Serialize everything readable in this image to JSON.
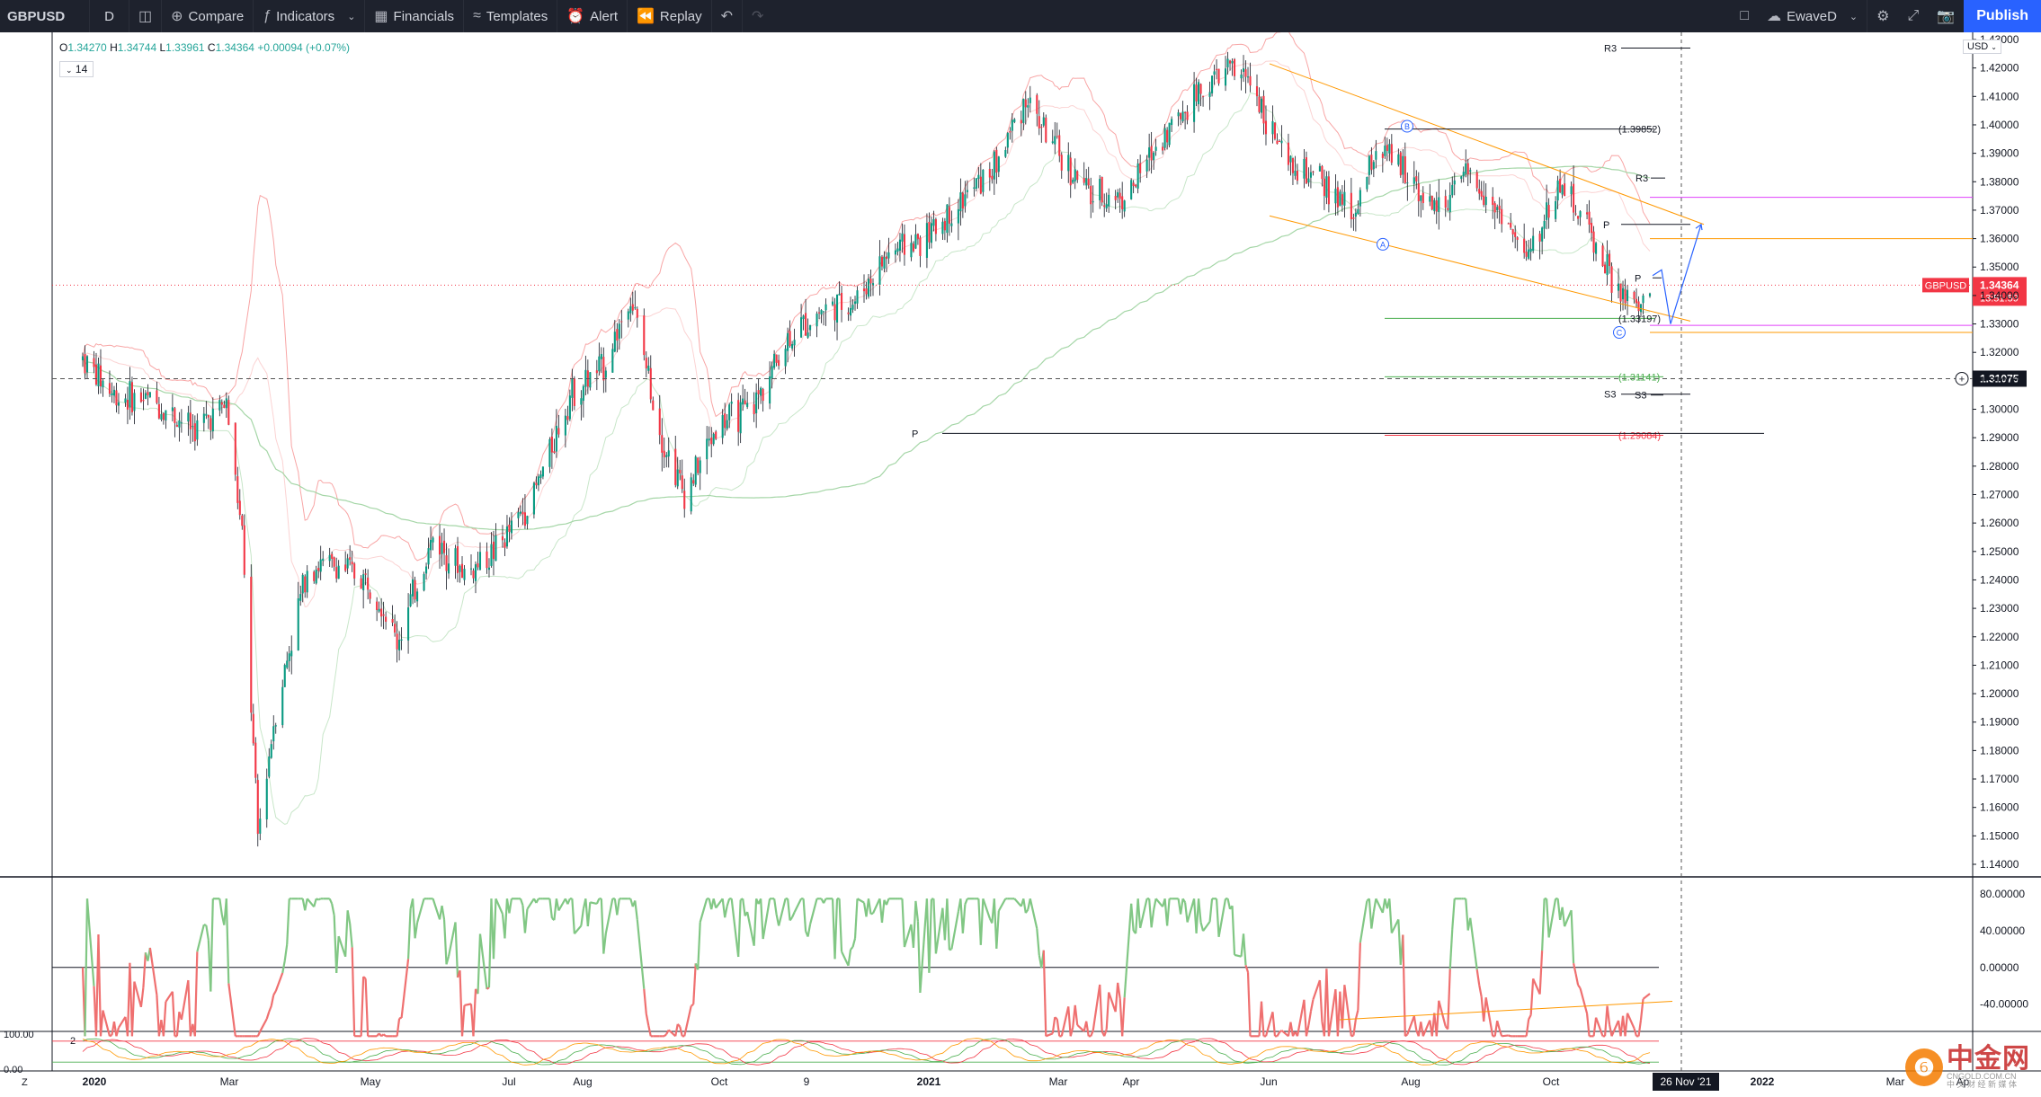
{
  "toolbar": {
    "symbol": "GBPUSD",
    "interval": "D",
    "compare": "Compare",
    "indicators": "Indicators",
    "financials": "Financials",
    "templates": "Templates",
    "alert": "Alert",
    "replay": "Replay",
    "layout_name": "EwaveD",
    "publish": "Publish"
  },
  "legend": {
    "o_label": "O",
    "o": "1.34270",
    "h_label": "H",
    "h": "1.34744",
    "l_label": "L",
    "l": "1.33961",
    "c_label": "C",
    "c": "1.34364",
    "change": "+0.00094 (+0.07%)",
    "period": "14"
  },
  "currency": "USD",
  "price_tag": {
    "symbol": "GBPUSD",
    "price": "1.34364",
    "countdown": "13:51:59",
    "color": "#f23645"
  },
  "crosshair_price": "1.31075",
  "crosshair_date": "26 Nov '21",
  "colors": {
    "up": "#089981",
    "down": "#f23645",
    "accent": "#2962ff",
    "band": "#f8a5a5",
    "ma": "#a5d6a7"
  },
  "chart_data": {
    "type": "candlestick",
    "price_axis": [
      "1.43000",
      "1.42000",
      "1.41000",
      "1.40000",
      "1.39000",
      "1.38000",
      "1.37000",
      "1.36000",
      "1.35000",
      "1.34000",
      "1.33000",
      "1.32000",
      "1.31000",
      "1.30000",
      "1.29000",
      "1.28000",
      "1.27000",
      "1.26000",
      "1.25000",
      "1.24000",
      "1.23000",
      "1.22000",
      "1.21000",
      "1.20000",
      "1.19000",
      "1.18000",
      "1.17000",
      "1.16000",
      "1.15000",
      "1.14000"
    ],
    "ylim": [
      1.1375,
      1.4315
    ],
    "time_axis": [
      "2020",
      "Mar",
      "May",
      "Jul",
      "Aug",
      "Oct",
      "9",
      "2021",
      "Mar",
      "Apr",
      "Jun",
      "Aug",
      "Oct",
      "26 Nov '21",
      "2022",
      "Mar",
      "Ap"
    ],
    "series_close": [
      [
        "2020-01-01",
        1.318
      ],
      [
        "2020-01-15",
        1.305
      ],
      [
        "2020-02-01",
        1.303
      ],
      [
        "2020-02-20",
        1.293
      ],
      [
        "2020-03-05",
        1.302
      ],
      [
        "2020-03-12",
        1.255
      ],
      [
        "2020-03-19",
        1.15
      ],
      [
        "2020-03-26",
        1.19
      ],
      [
        "2020-04-10",
        1.245
      ],
      [
        "2020-04-25",
        1.245
      ],
      [
        "2020-05-10",
        1.238
      ],
      [
        "2020-05-20",
        1.218
      ],
      [
        "2020-06-05",
        1.255
      ],
      [
        "2020-06-20",
        1.242
      ],
      [
        "2020-07-05",
        1.252
      ],
      [
        "2020-07-20",
        1.27
      ],
      [
        "2020-08-05",
        1.305
      ],
      [
        "2020-08-20",
        1.315
      ],
      [
        "2020-09-01",
        1.34
      ],
      [
        "2020-09-15",
        1.29
      ],
      [
        "2020-09-25",
        1.27
      ],
      [
        "2020-10-10",
        1.295
      ],
      [
        "2020-10-25",
        1.3
      ],
      [
        "2020-11-10",
        1.325
      ],
      [
        "2020-11-25",
        1.335
      ],
      [
        "2020-12-10",
        1.338
      ],
      [
        "2020-12-25",
        1.355
      ],
      [
        "2021-01-10",
        1.36
      ],
      [
        "2021-01-25",
        1.372
      ],
      [
        "2021-02-10",
        1.385
      ],
      [
        "2021-02-24",
        1.41
      ],
      [
        "2021-03-10",
        1.39
      ],
      [
        "2021-03-25",
        1.375
      ],
      [
        "2021-04-10",
        1.375
      ],
      [
        "2021-04-25",
        1.395
      ],
      [
        "2021-05-10",
        1.41
      ],
      [
        "2021-05-25",
        1.42
      ],
      [
        "2021-06-05",
        1.415
      ],
      [
        "2021-06-20",
        1.385
      ],
      [
        "2021-07-05",
        1.38
      ],
      [
        "2021-07-20",
        1.368
      ],
      [
        "2021-07-30",
        1.392
      ],
      [
        "2021-08-15",
        1.382
      ],
      [
        "2021-08-25",
        1.37
      ],
      [
        "2021-09-10",
        1.382
      ],
      [
        "2021-09-25",
        1.368
      ],
      [
        "2021-10-05",
        1.352
      ],
      [
        "2021-10-20",
        1.38
      ],
      [
        "2021-11-01",
        1.365
      ],
      [
        "2021-11-15",
        1.34
      ],
      [
        "2021-11-25",
        1.335
      ],
      [
        "2021-11-29",
        1.3436
      ]
    ],
    "annotations": {
      "levels": [
        {
          "label": "(1.39852)",
          "value": 1.39852
        },
        {
          "label": "(1.33197)",
          "value": 1.33197
        },
        {
          "label": "(1.31141)",
          "value": 1.31141
        },
        {
          "label": "(1.29084)",
          "value": 1.29084
        }
      ],
      "pivots": [
        "R3",
        "R3",
        "P",
        "P",
        "P",
        "S3",
        "S3"
      ],
      "waves": [
        "A",
        "B",
        "C"
      ]
    },
    "oscillator": {
      "axis": [
        "80.00000",
        "40.00000",
        "0.00000",
        "-40.00000"
      ],
      "ylim": [
        -80,
        95
      ]
    },
    "bottom_panel": {
      "axis": [
        "100.00",
        "0.00"
      ],
      "period": "2"
    }
  },
  "watermark": {
    "logo": "❻",
    "brand": "中金网",
    "site": "CNGOLD.COM.CN",
    "tag": "中 文 财 经 新 媒 体"
  }
}
